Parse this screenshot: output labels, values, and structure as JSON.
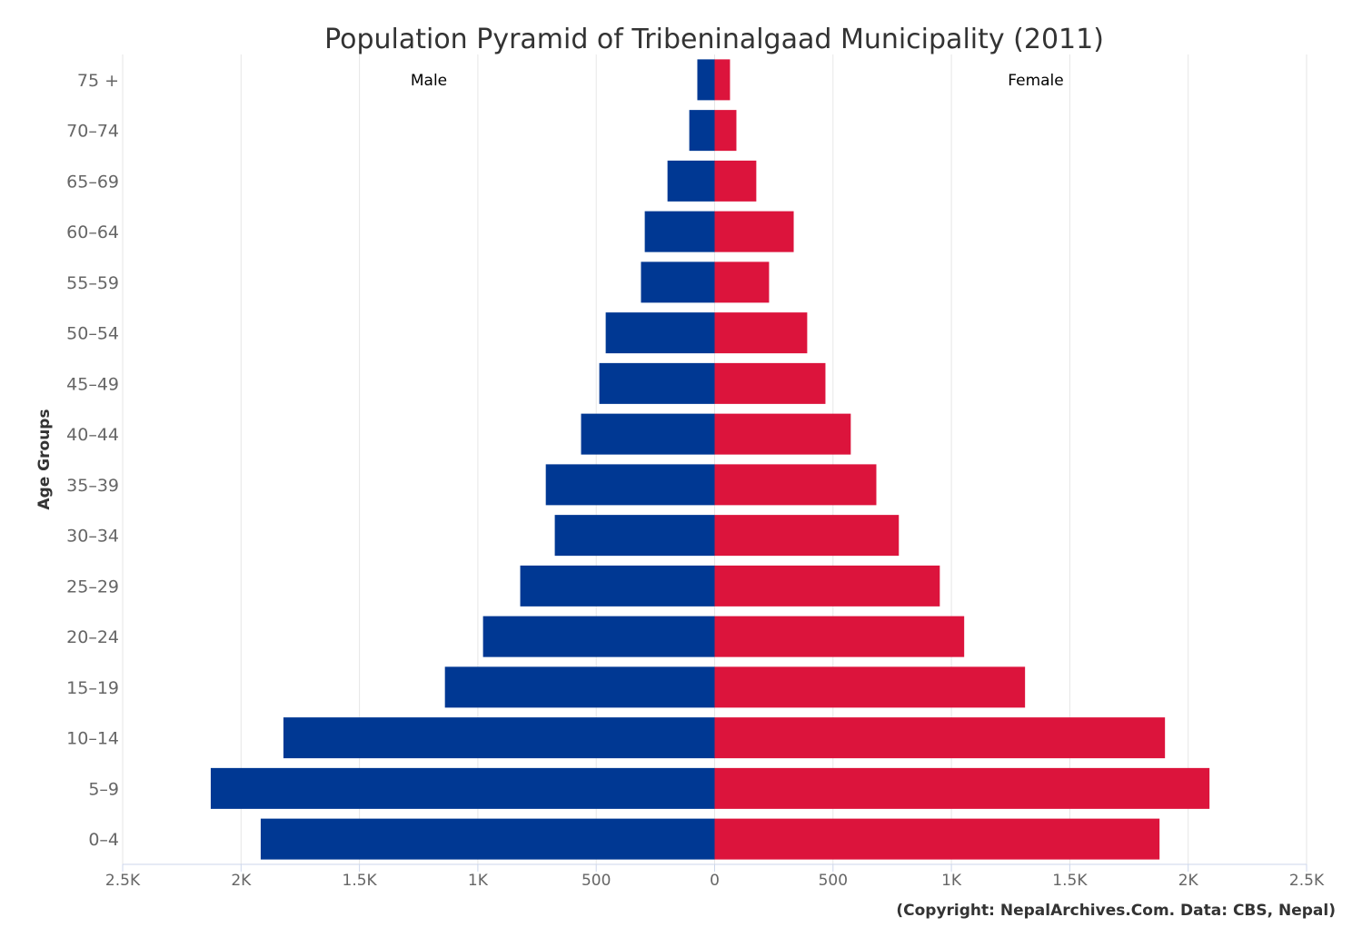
{
  "chart_data": {
    "type": "bar",
    "orientation": "horizontal-pyramid",
    "title": "Population Pyramid of Tribeninalgaad Municipality (2011)",
    "ylabel": "Age Groups",
    "xlabel": "",
    "categories": [
      "75 +",
      "70-74",
      "65-69",
      "60-64",
      "55-59",
      "50-54",
      "45-49",
      "40-44",
      "35-39",
      "30-34",
      "25-29",
      "20-24",
      "15-19",
      "10-14",
      "5-9",
      "0-4"
    ],
    "series": [
      {
        "name": "Male",
        "color": "#003893",
        "values": [
          73,
          107,
          199,
          295,
          311,
          460,
          487,
          564,
          713,
          675,
          821,
          978,
          1139,
          1821,
          2128,
          1917
        ]
      },
      {
        "name": "Female",
        "color": "#DC143C",
        "values": [
          65,
          92,
          176,
          334,
          230,
          391,
          468,
          575,
          683,
          778,
          951,
          1054,
          1311,
          1902,
          2090,
          1879
        ]
      }
    ],
    "xlim": [
      -2500,
      2500
    ],
    "xticks": [
      -2500,
      -2000,
      -1500,
      -1000,
      -500,
      0,
      500,
      1000,
      1500,
      2000,
      2500
    ],
    "xtick_labels": [
      "2.5K",
      "2K",
      "1.5K",
      "1K",
      "500",
      "0",
      "500",
      "1K",
      "1.5K",
      "2K",
      "2.5K"
    ],
    "grid": true,
    "legend": "none",
    "credit": "(Copyright: NepalArchives.Com. Data: CBS, Nepal)"
  }
}
